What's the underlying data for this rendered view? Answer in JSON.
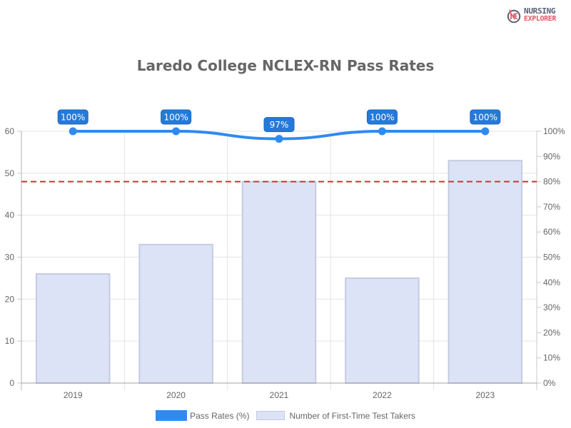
{
  "brand": {
    "line1": "NURSING",
    "line2": "EXPLORER",
    "icon": "nursing-explorer-logo-icon"
  },
  "chart_data": {
    "type": "bar",
    "title": "Laredo College NCLEX-RN Pass Rates",
    "categories": [
      "2019",
      "2020",
      "2021",
      "2022",
      "2023"
    ],
    "series": [
      {
        "name": "Pass Rates (%)",
        "type": "line",
        "axis": "right",
        "values": [
          100,
          100,
          97,
          100,
          100
        ],
        "labels": [
          "100%",
          "100%",
          "97%",
          "100%",
          "100%"
        ],
        "color": "#2f8af1"
      },
      {
        "name": "Number of First-Time Test Takers",
        "type": "bar",
        "axis": "left",
        "values": [
          26,
          33,
          48,
          25,
          53
        ],
        "color": "#dde3f7",
        "border": "#c5cbe2"
      }
    ],
    "left_axis": {
      "ylim": [
        0,
        60
      ],
      "ticks": [
        "0",
        "10",
        "20",
        "30",
        "40",
        "50",
        "60"
      ]
    },
    "right_axis": {
      "ylim": [
        0,
        100
      ],
      "ticks": [
        "0%",
        "10%",
        "20%",
        "30%",
        "40%",
        "50%",
        "60%",
        "70%",
        "80%",
        "90%",
        "100%"
      ]
    },
    "annotations": [
      {
        "type": "horizontal-dashed-line",
        "axis": "right",
        "value": 80,
        "color": "#e8262c"
      }
    ],
    "grid": true,
    "legend_position": "bottom",
    "xlabel": "",
    "ylabel": ""
  },
  "legend": {
    "items": [
      {
        "label": "Pass Rates (%)"
      },
      {
        "label": "Number of First-Time Test Takers"
      }
    ]
  }
}
